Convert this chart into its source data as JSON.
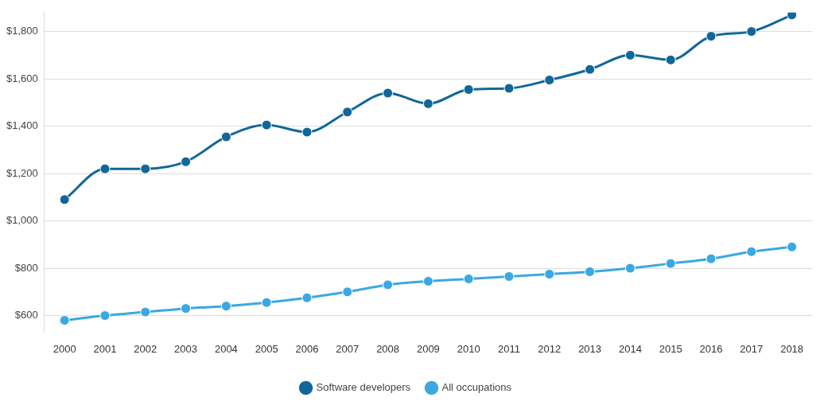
{
  "chart_data": {
    "type": "line",
    "categories": [
      "2000",
      "2001",
      "2002",
      "2003",
      "2004",
      "2005",
      "2006",
      "2007",
      "2008",
      "2009",
      "2010",
      "2011",
      "2012",
      "2013",
      "2014",
      "2015",
      "2016",
      "2017",
      "2018"
    ],
    "series": [
      {
        "name": "Software developers",
        "color": "#11679a",
        "values": [
          1090,
          1220,
          1220,
          1250,
          1355,
          1405,
          1375,
          1460,
          1540,
          1495,
          1555,
          1560,
          1595,
          1640,
          1700,
          1680,
          1780,
          1800,
          1870
        ]
      },
      {
        "name": "All occupations",
        "color": "#3ba8e2",
        "values": [
          580,
          600,
          615,
          630,
          640,
          655,
          675,
          700,
          730,
          745,
          755,
          765,
          775,
          785,
          800,
          820,
          840,
          870,
          890
        ]
      }
    ],
    "ylim": [
      530,
      1880
    ],
    "yticks": [
      {
        "value": 600,
        "label": "$600"
      },
      {
        "value": 800,
        "label": "$800"
      },
      {
        "value": 1000,
        "label": "$1,000"
      },
      {
        "value": 1200,
        "label": "$1,200"
      },
      {
        "value": 1400,
        "label": "$1,400"
      },
      {
        "value": 1600,
        "label": "$1,600"
      },
      {
        "value": 1800,
        "label": "$1,800"
      }
    ],
    "grid": "y",
    "legend": "bottom",
    "marker": "circle",
    "line_style": "solid"
  }
}
